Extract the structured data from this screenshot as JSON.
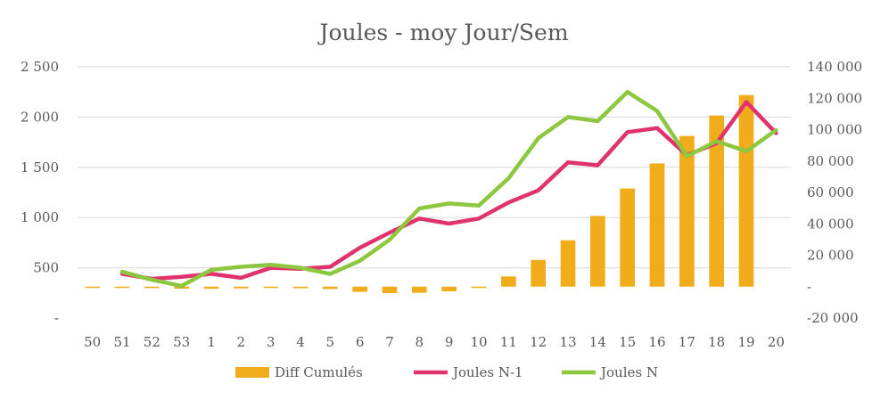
{
  "chart_data": {
    "type": "bar+line",
    "title": "Joules - moy Jour/Sem",
    "categories": [
      "50",
      "51",
      "52",
      "53",
      "1",
      "2",
      "3",
      "4",
      "5",
      "6",
      "7",
      "8",
      "9",
      "10",
      "11",
      "12",
      "13",
      "14",
      "15",
      "16",
      "17",
      "18",
      "19",
      "20"
    ],
    "left_axis": {
      "range": [
        0,
        2500
      ],
      "ticks": [
        {
          "value": 0,
          "label": "-"
        },
        {
          "value": 500,
          "label": "500"
        },
        {
          "value": 1000,
          "label": "1 000"
        },
        {
          "value": 1500,
          "label": "1 500"
        },
        {
          "value": 2000,
          "label": "2 000"
        },
        {
          "value": 2500,
          "label": "2 500"
        }
      ]
    },
    "right_axis": {
      "range": [
        -20000,
        140000
      ],
      "ticks": [
        {
          "value": -20000,
          "label": "-20 000"
        },
        {
          "value": 0,
          "label": "-"
        },
        {
          "value": 20000,
          "label": "20 000"
        },
        {
          "value": 40000,
          "label": "40 000"
        },
        {
          "value": 60000,
          "label": "60 000"
        },
        {
          "value": 80000,
          "label": "80 000"
        },
        {
          "value": 100000,
          "label": "100 000"
        },
        {
          "value": 120000,
          "label": "120 000"
        },
        {
          "value": 140000,
          "label": "140 000"
        }
      ]
    },
    "series": [
      {
        "name": "Diff Cumulés",
        "type": "bar",
        "axis": "right",
        "color": "#F0AC1A",
        "values": [
          -500,
          -600,
          -900,
          -1300,
          -1300,
          -1100,
          -700,
          -1000,
          -1500,
          -3300,
          -4100,
          -3900,
          -3000,
          -600,
          6500,
          17000,
          29500,
          45000,
          62500,
          78500,
          96000,
          109000,
          122000,
          null
        ]
      },
      {
        "name": "Joules N-1",
        "type": "line",
        "axis": "left",
        "color": "#E0336E",
        "values": [
          null,
          440,
          390,
          410,
          440,
          400,
          500,
          490,
          510,
          700,
          850,
          990,
          940,
          990,
          1150,
          1270,
          1550,
          1520,
          1850,
          1890,
          1620,
          1740,
          2150,
          1840
        ]
      },
      {
        "name": "Joules N",
        "type": "line",
        "axis": "left",
        "color": "#8DC63F",
        "values": [
          null,
          460,
          380,
          320,
          480,
          510,
          530,
          500,
          440,
          570,
          780,
          1090,
          1140,
          1120,
          1390,
          1790,
          2000,
          1960,
          2250,
          2060,
          1610,
          1760,
          1660,
          1870
        ]
      }
    ],
    "legend": {
      "position": "bottom",
      "items": [
        {
          "label": "Diff Cumulés",
          "marker": "bar"
        },
        {
          "label": "Joules N-1",
          "marker": "line"
        },
        {
          "label": "Joules N",
          "marker": "line"
        }
      ]
    },
    "grid": true
  }
}
